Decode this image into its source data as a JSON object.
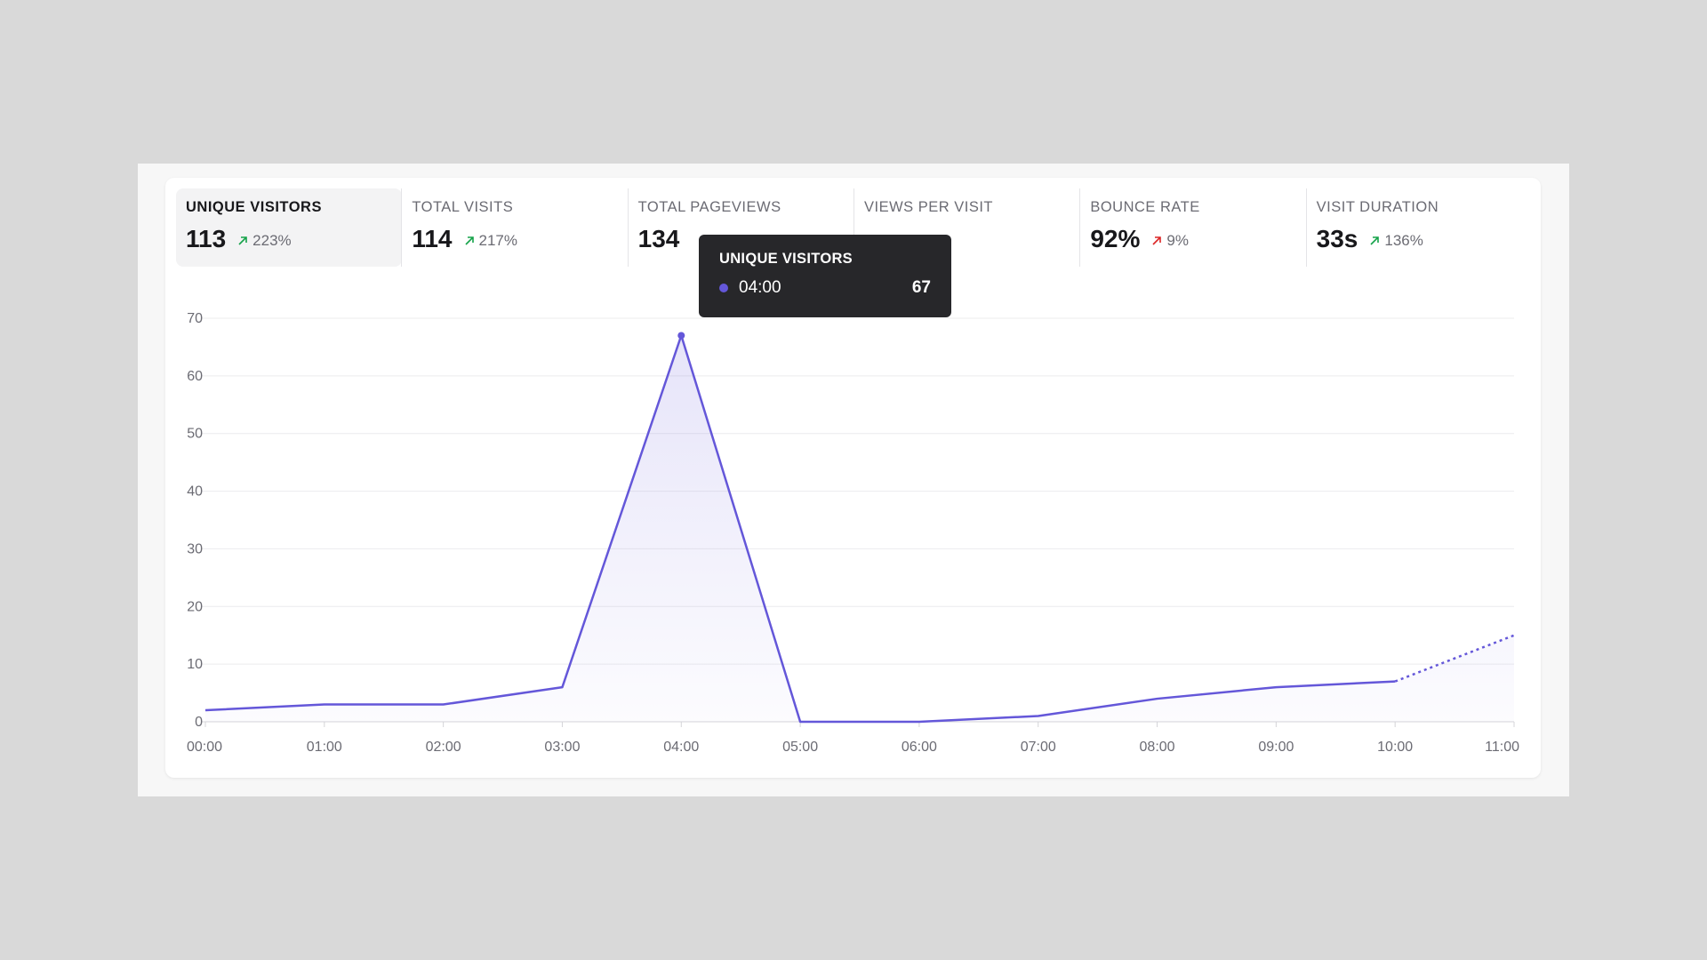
{
  "stats": [
    {
      "label": "UNIQUE VISITORS",
      "value": "113",
      "change": "223%",
      "trend": "up",
      "active": true
    },
    {
      "label": "TOTAL VISITS",
      "value": "114",
      "change": "217%",
      "trend": "up",
      "active": false
    },
    {
      "label": "TOTAL PAGEVIEWS",
      "value": "134",
      "change": "",
      "trend": "up",
      "active": false
    },
    {
      "label": "VIEWS PER VISIT",
      "value": "",
      "change": "",
      "trend": "up",
      "active": false
    },
    {
      "label": "BOUNCE RATE",
      "value": "92%",
      "change": "9%",
      "trend": "up-bad",
      "active": false
    },
    {
      "label": "VISIT DURATION",
      "value": "33s",
      "change": "136%",
      "trend": "up",
      "active": false
    }
  ],
  "tooltip": {
    "title": "UNIQUE VISITORS",
    "time": "04:00",
    "value": "67"
  },
  "colors": {
    "accent": "#6457d9",
    "up": "#16a34a",
    "down_bad": "#dc2626"
  },
  "chart_data": {
    "type": "area",
    "x": [
      "00:00",
      "01:00",
      "02:00",
      "03:00",
      "04:00",
      "05:00",
      "06:00",
      "07:00",
      "08:00",
      "09:00",
      "10:00",
      "11:00"
    ],
    "series": [
      {
        "values": [
          2,
          3,
          3,
          6,
          67,
          0,
          0,
          1,
          4,
          6,
          7,
          15
        ],
        "dashed_from_index": 10
      }
    ],
    "y_ticks": [
      0,
      10,
      20,
      30,
      40,
      50,
      60,
      70
    ],
    "ylim": [
      0,
      70
    ],
    "grid": true,
    "title": "",
    "xlabel": "",
    "ylabel": ""
  }
}
